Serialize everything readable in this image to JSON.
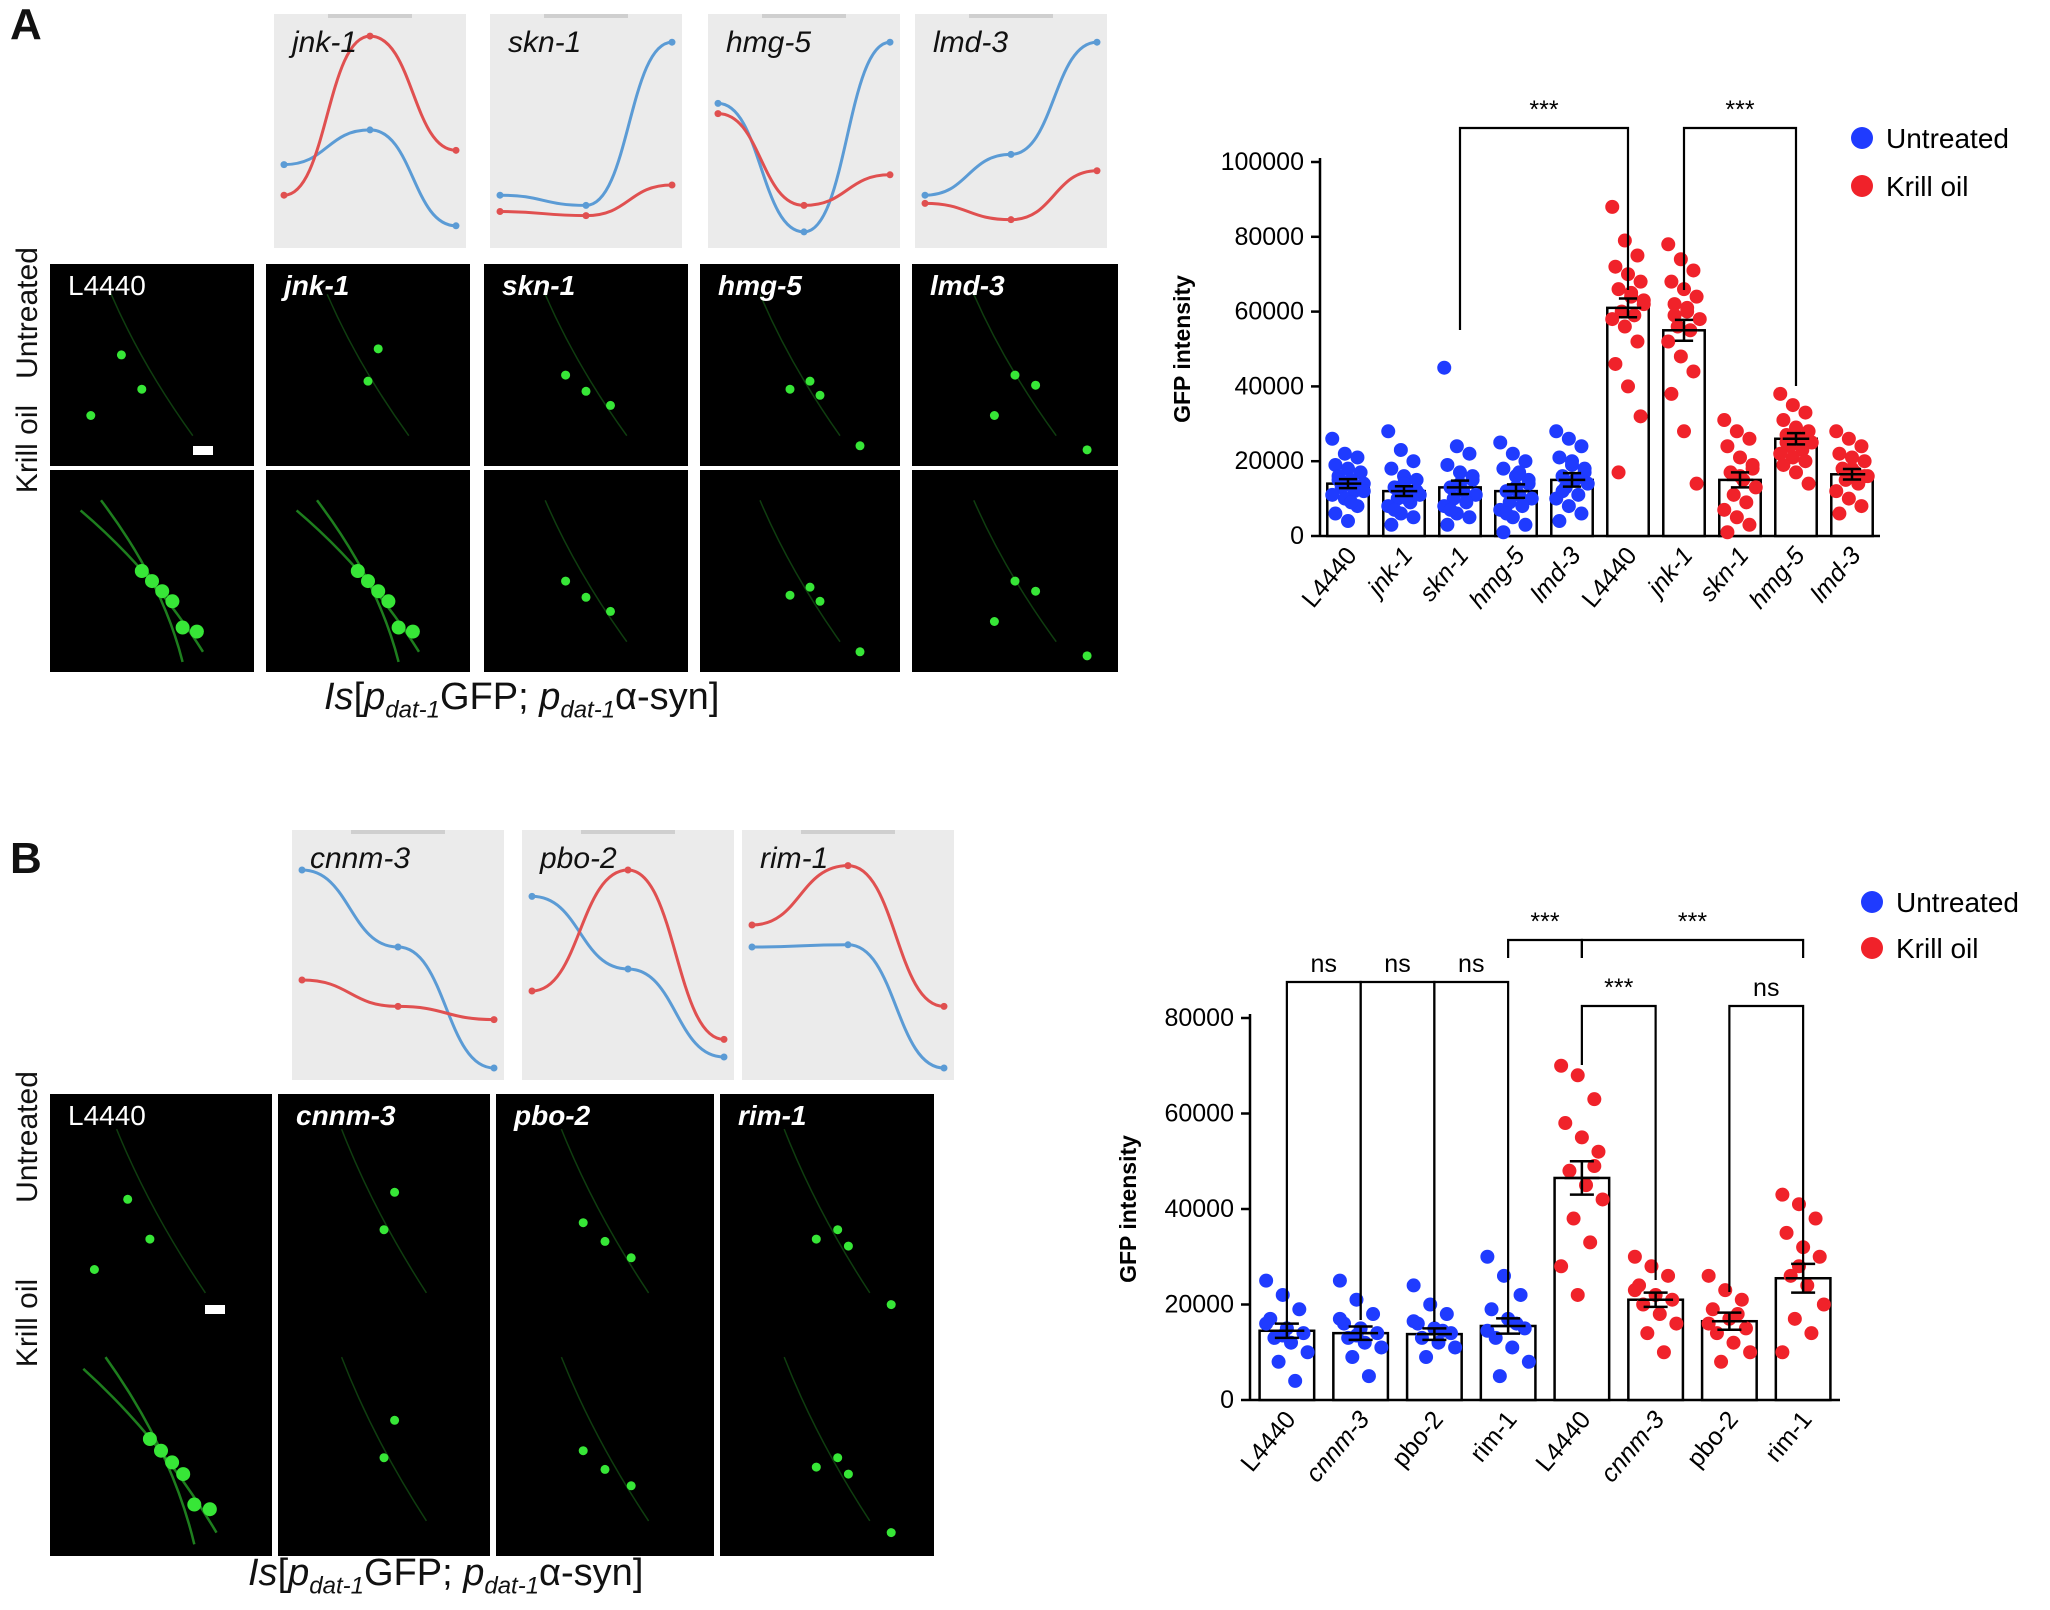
{
  "panelA": {
    "letter": "A",
    "mini_plots": [
      {
        "gene": "jnk-1",
        "blue": [
          0.65,
          0.48,
          0.95
        ],
        "red": [
          0.8,
          0.02,
          0.58
        ]
      },
      {
        "gene": "skn-1",
        "blue": [
          0.8,
          0.85,
          0.05
        ],
        "red": [
          0.88,
          0.9,
          0.75
        ]
      },
      {
        "gene": "hmg-5",
        "blue": [
          0.35,
          0.98,
          0.05
        ],
        "red": [
          0.4,
          0.85,
          0.7
        ]
      },
      {
        "gene": "lmd-3",
        "blue": [
          0.8,
          0.6,
          0.05
        ],
        "red": [
          0.84,
          0.92,
          0.68
        ]
      }
    ],
    "image_labels": [
      "L4440",
      "jnk-1",
      "skn-1",
      "hmg-5",
      "lmd-3"
    ],
    "row_labels": [
      "Untreated",
      "Krill oil"
    ],
    "genotype": {
      "prefix": "Is",
      "p1": "p",
      "sub1": "dat-1",
      "gfp": "GFP; ",
      "p2": "p",
      "sub2": "dat-1",
      "syn": "α-syn",
      "close": "]"
    }
  },
  "panelB": {
    "letter": "B",
    "mini_plots": [
      {
        "gene": "cnnm-3",
        "blue": [
          0.1,
          0.45,
          1.0
        ],
        "red": [
          0.6,
          0.72,
          0.78
        ]
      },
      {
        "gene": "pbo-2",
        "blue": [
          0.22,
          0.55,
          0.95
        ],
        "red": [
          0.65,
          0.1,
          0.87
        ]
      },
      {
        "gene": "rim-1",
        "blue": [
          0.45,
          0.44,
          1.0
        ],
        "red": [
          0.35,
          0.08,
          0.72
        ]
      }
    ],
    "image_labels": [
      "L4440",
      "cnnm-3",
      "pbo-2",
      "rim-1"
    ],
    "row_labels": [
      "Untreated",
      "Krill oil"
    ],
    "genotype": {
      "prefix": "Is",
      "p1": "p",
      "sub1": "dat-1",
      "gfp": "GFP; ",
      "p2": "p",
      "sub2": "dat-1",
      "syn": "α-syn",
      "close": "]"
    }
  },
  "colors": {
    "untreated": "#1f3bff",
    "krill": "#f0222a",
    "mini_blue": "#5b9bd5",
    "mini_red": "#e05050",
    "gfp": "#37e637"
  },
  "chart_data": [
    {
      "type": "bar",
      "ylabel": "GFP intensity",
      "ylim": [
        0,
        100000
      ],
      "yticks": [
        0,
        20000,
        40000,
        60000,
        80000,
        100000
      ],
      "categories": [
        "L4440",
        "jnk-1",
        "skn-1",
        "hmg-5",
        "lmd-3",
        "L4440",
        "jnk-1",
        "skn-1",
        "hmg-5",
        "lmd-3"
      ],
      "italic": [
        false,
        true,
        true,
        true,
        true,
        false,
        true,
        true,
        true,
        true
      ],
      "groups": [
        "Untreated",
        "Untreated",
        "Untreated",
        "Untreated",
        "Untreated",
        "Krill oil",
        "Krill oil",
        "Krill oil",
        "Krill oil",
        "Krill oil"
      ],
      "values": [
        14000,
        12000,
        13000,
        12000,
        15000,
        61000,
        55000,
        15000,
        26000,
        16500
      ],
      "sem": [
        1200,
        1300,
        1800,
        1800,
        1800,
        2500,
        2800,
        2000,
        1500,
        1400
      ],
      "points": [
        [
          26000,
          22000,
          21000,
          19000,
          18000,
          17000,
          16000,
          15000,
          14000,
          13000,
          12000,
          11000,
          10000,
          8000,
          6000,
          4000,
          13000,
          15000,
          9000,
          12000
        ],
        [
          28000,
          23000,
          20000,
          18000,
          16000,
          15000,
          13000,
          12000,
          11000,
          10000,
          9000,
          8000,
          6000,
          5000,
          3000,
          14000,
          12000,
          7000,
          10000
        ],
        [
          45000,
          24000,
          22000,
          19000,
          17000,
          15000,
          13000,
          12000,
          11000,
          10000,
          9000,
          8000,
          6000,
          5000,
          3000,
          14000,
          16000,
          7000
        ],
        [
          25000,
          22000,
          20000,
          18000,
          16000,
          14000,
          12000,
          11000,
          10000,
          9000,
          8000,
          7000,
          5000,
          3000,
          1000,
          13000,
          15000,
          6000,
          17000
        ],
        [
          28000,
          26000,
          24000,
          21000,
          19000,
          17000,
          16000,
          15000,
          14000,
          13000,
          11000,
          10000,
          8000,
          6000,
          4000,
          20000,
          18000,
          12000
        ],
        [
          88000,
          79000,
          75000,
          72000,
          70000,
          68000,
          66000,
          64000,
          62000,
          60000,
          59000,
          58000,
          56000,
          52000,
          46000,
          40000,
          32000,
          17000,
          65000,
          63000
        ],
        [
          78000,
          74000,
          71000,
          68000,
          66000,
          64000,
          62000,
          60000,
          58000,
          56000,
          55000,
          52000,
          48000,
          44000,
          38000,
          28000,
          14000,
          59000,
          61000
        ],
        [
          31000,
          28000,
          26000,
          24000,
          21000,
          19000,
          17000,
          15000,
          13000,
          11000,
          9000,
          7000,
          5000,
          3000,
          1000,
          16000,
          18000
        ],
        [
          38000,
          35000,
          33000,
          31000,
          29000,
          28000,
          27000,
          26000,
          25000,
          24000,
          23000,
          22000,
          21000,
          20000,
          19000,
          17000,
          14000,
          25000
        ],
        [
          28000,
          26000,
          24000,
          22000,
          21000,
          20000,
          18000,
          17000,
          16000,
          15000,
          14000,
          12000,
          10000,
          8000,
          6000,
          18000,
          16000
        ]
      ],
      "legend": [
        "Untreated",
        "Krill oil"
      ],
      "legend_position": "top-right",
      "significance": [
        {
          "from": 2,
          "to": 5,
          "label": "***"
        },
        {
          "from": 6,
          "to": 8,
          "label": "***"
        }
      ]
    },
    {
      "type": "bar",
      "ylabel": "GFP intensity",
      "ylim": [
        0,
        80000
      ],
      "yticks": [
        0,
        20000,
        40000,
        60000,
        80000
      ],
      "categories": [
        "L4440",
        "cnnm-3",
        "pbo-2",
        "rim-1",
        "L4440",
        "cnnm-3",
        "pbo-2",
        "rim-1"
      ],
      "italic": [
        false,
        true,
        false,
        false,
        false,
        true,
        false,
        false
      ],
      "groups": [
        "Untreated",
        "Untreated",
        "Untreated",
        "Untreated",
        "Krill oil",
        "Krill oil",
        "Krill oil",
        "Krill oil"
      ],
      "values": [
        14500,
        14000,
        13800,
        15500,
        46500,
        21000,
        16500,
        25500
      ],
      "sem": [
        1500,
        1400,
        1200,
        1600,
        3500,
        1500,
        1800,
        3000
      ],
      "points": [
        [
          25000,
          22000,
          19000,
          17000,
          15000,
          14000,
          13000,
          12000,
          10000,
          8000,
          4000,
          16000,
          13500
        ],
        [
          25000,
          21000,
          18000,
          16000,
          15000,
          14000,
          13000,
          12000,
          11000,
          9000,
          5000,
          17000,
          13500
        ],
        [
          24000,
          20000,
          18000,
          16000,
          15000,
          14000,
          13000,
          12000,
          11000,
          9000,
          14500,
          16500
        ],
        [
          30000,
          26000,
          22000,
          19000,
          17000,
          15000,
          13000,
          11000,
          8000,
          5000,
          16000,
          14500
        ],
        [
          70000,
          68000,
          63000,
          58000,
          55000,
          52000,
          48000,
          45000,
          42000,
          38000,
          33000,
          28000,
          22000,
          49000
        ],
        [
          30000,
          28000,
          26000,
          24000,
          22000,
          21000,
          20000,
          18000,
          16000,
          14000,
          10000,
          23000
        ],
        [
          26000,
          23000,
          21000,
          19000,
          17000,
          15000,
          14000,
          12000,
          10000,
          8000,
          18000,
          16000
        ],
        [
          43000,
          41000,
          38000,
          35000,
          32000,
          30000,
          26000,
          24000,
          20000,
          17000,
          14000,
          10000,
          28000
        ]
      ],
      "legend": [
        "Untreated",
        "Krill oil"
      ],
      "legend_position": "top-right",
      "significance": [
        {
          "from": 0,
          "to": 1,
          "label": "ns"
        },
        {
          "from": 1,
          "to": 2,
          "label": "ns"
        },
        {
          "from": 2,
          "to": 3,
          "label": "ns"
        },
        {
          "from": 3,
          "to": 4,
          "label": "***"
        },
        {
          "from": 4,
          "to": 7,
          "label": "***"
        },
        {
          "from": 4,
          "to": 5,
          "label": "***"
        },
        {
          "from": 6,
          "to": 7,
          "label": "ns"
        }
      ]
    }
  ]
}
